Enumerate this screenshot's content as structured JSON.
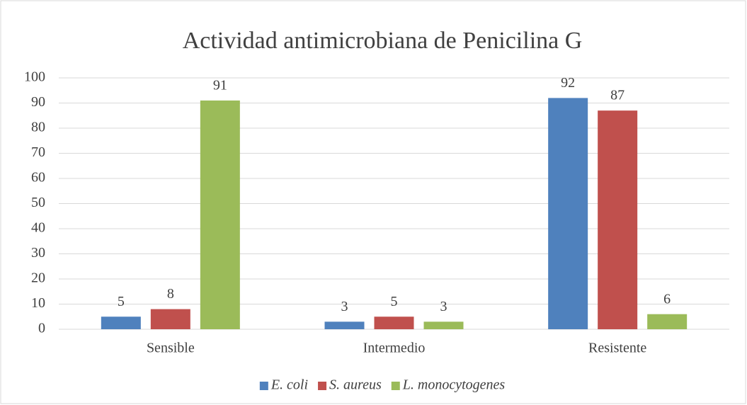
{
  "chart_data": {
    "type": "bar",
    "title": "Actividad antimicrobiana de Penicilina G",
    "categories": [
      "Sensible",
      "Intermedio",
      "Resistente"
    ],
    "series": [
      {
        "name": "E. coli",
        "color": "#4f81bd",
        "values": [
          5,
          3,
          92
        ]
      },
      {
        "name": "S. aureus",
        "color": "#c0504d",
        "values": [
          8,
          5,
          87
        ]
      },
      {
        "name": "L. monocytogenes",
        "color": "#9bbb59",
        "values": [
          91,
          3,
          6
        ]
      }
    ],
    "ylim": [
      0,
      100
    ],
    "yticks": [
      0,
      10,
      20,
      30,
      40,
      50,
      60,
      70,
      80,
      90,
      100
    ],
    "grid": true,
    "legend": "bottom"
  }
}
